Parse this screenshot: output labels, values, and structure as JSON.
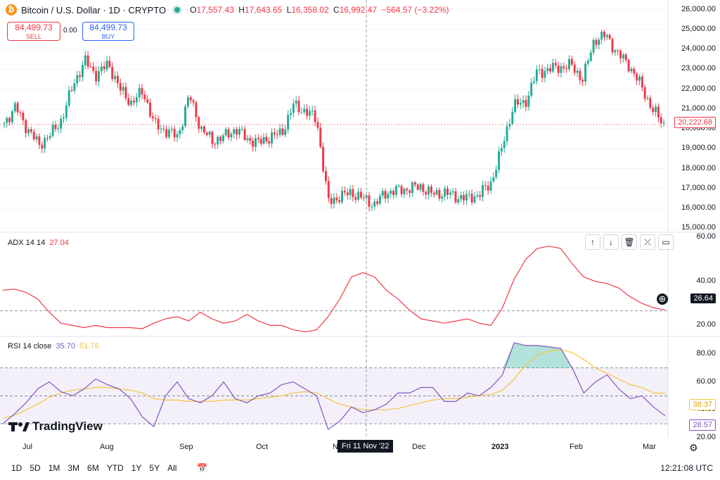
{
  "header": {
    "symbol_title": "Bitcoin / U.S. Dollar · 1D · CRYPTO",
    "coin_icon": "bitcoin-icon",
    "open_key": "O",
    "open": "17,557.43",
    "high_key": "H",
    "high": "17,643.65",
    "low_key": "L",
    "low": "16,358.02",
    "close_key": "C",
    "close": "16,992.47",
    "change": "−564.57 (−3.22%)"
  },
  "trade": {
    "sell_price": "84,499.73",
    "sell_label": "SELL",
    "buy_price": "84,499.73",
    "buy_label": "BUY",
    "spread": "0.00"
  },
  "price_axis": [
    "26,000.00",
    "25,000.00",
    "24,000.00",
    "23,000.00",
    "22,000.00",
    "21,000.00",
    "20,000.00",
    "19,000.00",
    "18,000.00",
    "17,000.00",
    "16,000.00",
    "15,000.00"
  ],
  "last_price_tag": "20,222.68",
  "adx": {
    "label": "ADX 14 14",
    "value": "27.04",
    "axis": [
      "60.00",
      "40.00",
      "20.00"
    ],
    "cursor_tag": "26.64"
  },
  "rsi": {
    "label": "RSI 14 close",
    "value": "35.70",
    "ma_value": "51.76",
    "axis": [
      "80.00",
      "60.00",
      "40.00",
      "20.00"
    ],
    "ma_tag": "38.37",
    "tag": "28.57"
  },
  "time_axis": [
    "Jul",
    "Aug",
    "Sep",
    "Oct",
    "N",
    "Dec",
    "2023",
    "Feb",
    "Mar"
  ],
  "crosshair_date": "Fri 11 Nov '22",
  "toolbar": {
    "icons": [
      "arrow-up-icon",
      "arrow-down-icon",
      "trash-icon",
      "collapse-icon",
      "maximize-icon"
    ]
  },
  "ranges": [
    "1D",
    "5D",
    "1M",
    "3M",
    "6M",
    "YTD",
    "1Y",
    "5Y",
    "All"
  ],
  "clock": "12:21:08 UTC",
  "brand": "TradingView",
  "colors": {
    "up": "#22ab94",
    "down": "#f23645",
    "adx": "#f23645",
    "rsi": "#7e57c2",
    "rsi_ma": "#f5c542",
    "band": "#7e57c2"
  },
  "chart_data": [
    {
      "type": "candlestick",
      "title": "Bitcoin / U.S. Dollar · 1D · CRYPTO",
      "ylim": [
        14800,
        26200
      ],
      "x_labels": [
        "Jul",
        "Aug",
        "Sep",
        "Oct",
        "N",
        "Dec",
        "2023",
        "Feb",
        "Mar"
      ],
      "close_path": [
        20300,
        21100,
        20000,
        19200,
        19700,
        20500,
        22300,
        23400,
        22700,
        23300,
        22000,
        21300,
        21900,
        20200,
        19900,
        19600,
        21700,
        20000,
        19400,
        19600,
        20000,
        19500,
        19300,
        19600,
        19800,
        21200,
        20900,
        20500,
        16300,
        16600,
        16800,
        16500,
        16200,
        16800,
        16900,
        17000,
        17100,
        16700,
        16800,
        16600,
        16500,
        16700,
        17200,
        19000,
        21200,
        21300,
        22800,
        23000,
        23100,
        23200,
        22500,
        24500,
        24700,
        23800,
        23200,
        22200,
        21000,
        20222.68
      ],
      "last": 20222.68
    },
    {
      "type": "line",
      "title": "ADX 14 14",
      "ylim": [
        15,
        62
      ],
      "values": [
        36,
        36.5,
        35,
        32,
        26,
        21,
        20,
        19,
        20,
        19,
        19,
        19,
        18.5,
        21,
        23,
        24,
        22,
        26,
        23,
        21,
        22,
        25,
        22,
        20,
        20,
        18,
        17,
        18,
        24,
        32,
        42,
        44,
        42,
        36,
        32,
        27,
        23,
        22,
        21,
        22,
        23,
        21,
        20,
        28,
        41,
        50,
        55,
        56,
        55,
        48,
        42,
        40,
        39,
        37,
        33,
        30,
        28,
        27.04
      ]
    },
    {
      "type": "line",
      "title": "RSI 14 close",
      "ylim": [
        20,
        92
      ],
      "values": [
        30,
        37,
        45,
        55,
        60,
        53,
        50,
        55,
        62,
        58,
        55,
        48,
        35,
        28,
        50,
        60,
        48,
        45,
        50,
        60,
        48,
        45,
        50,
        52,
        58,
        60,
        55,
        50,
        26,
        32,
        42,
        38,
        40,
        44,
        52,
        52,
        56,
        56,
        46,
        46,
        52,
        50,
        56,
        65,
        88,
        86,
        86,
        85,
        84,
        70,
        52,
        60,
        65,
        55,
        48,
        50,
        42,
        35.7
      ],
      "ma_values": [
        34,
        36,
        40,
        44,
        49,
        52,
        54,
        55,
        56,
        56,
        55,
        54,
        52,
        48,
        47,
        47,
        46,
        46,
        46,
        47,
        47,
        47,
        48,
        49,
        50,
        52,
        53,
        52,
        48,
        44,
        42,
        40,
        40,
        40,
        41,
        43,
        45,
        47,
        48,
        48,
        49,
        50,
        51,
        54,
        62,
        72,
        79,
        82,
        83,
        81,
        76,
        70,
        66,
        62,
        58,
        56,
        52,
        51.76
      ],
      "band": [
        30,
        70
      ],
      "mid": 50
    }
  ]
}
